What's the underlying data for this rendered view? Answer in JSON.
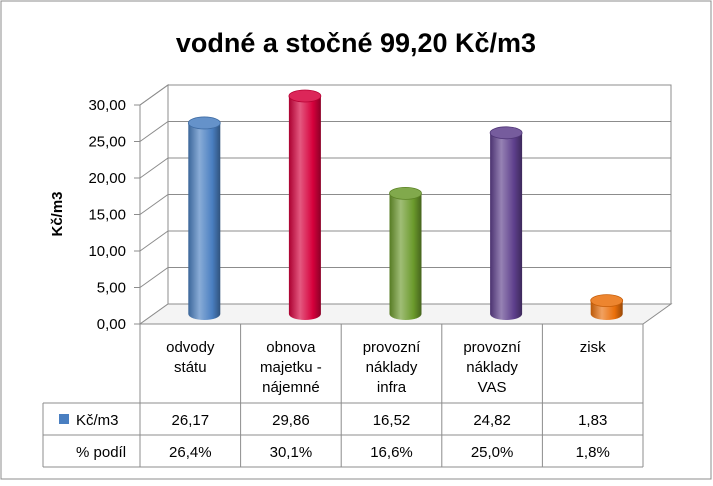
{
  "chart_data": {
    "type": "bar",
    "title": "vodné a stočné  99,20 Kč/m3",
    "ylabel": "Kč/m3",
    "ylim": [
      0,
      30
    ],
    "yticks": [
      "0,00",
      "5,00",
      "10,00",
      "15,00",
      "20,00",
      "25,00",
      "30,00"
    ],
    "categories": [
      [
        "odvody",
        "státu"
      ],
      [
        "obnova",
        "majetku -",
        "nájemné"
      ],
      [
        "provozní",
        "náklady",
        "infra"
      ],
      [
        "provozní",
        "náklady",
        "VAS"
      ],
      [
        "zisk"
      ]
    ],
    "series": [
      {
        "name": "Kč/m3",
        "values": [
          26.17,
          29.86,
          16.52,
          24.82,
          1.83
        ]
      }
    ],
    "table": {
      "rows": [
        {
          "label": "Kč/m3",
          "cells": [
            "26,17",
            "29,86",
            "16,52",
            "24,82",
            "1,83"
          ]
        },
        {
          "label": "% podíl",
          "cells": [
            "26,4%",
            "30,1%",
            "16,6%",
            "25,0%",
            "1,8%"
          ]
        }
      ]
    },
    "colors": [
      "#4a7fc1",
      "#d6003c",
      "#6b9a2c",
      "#5e3f8c",
      "#ea6f0a"
    ],
    "legend_color": "#4a7fc1",
    "grid": true
  }
}
